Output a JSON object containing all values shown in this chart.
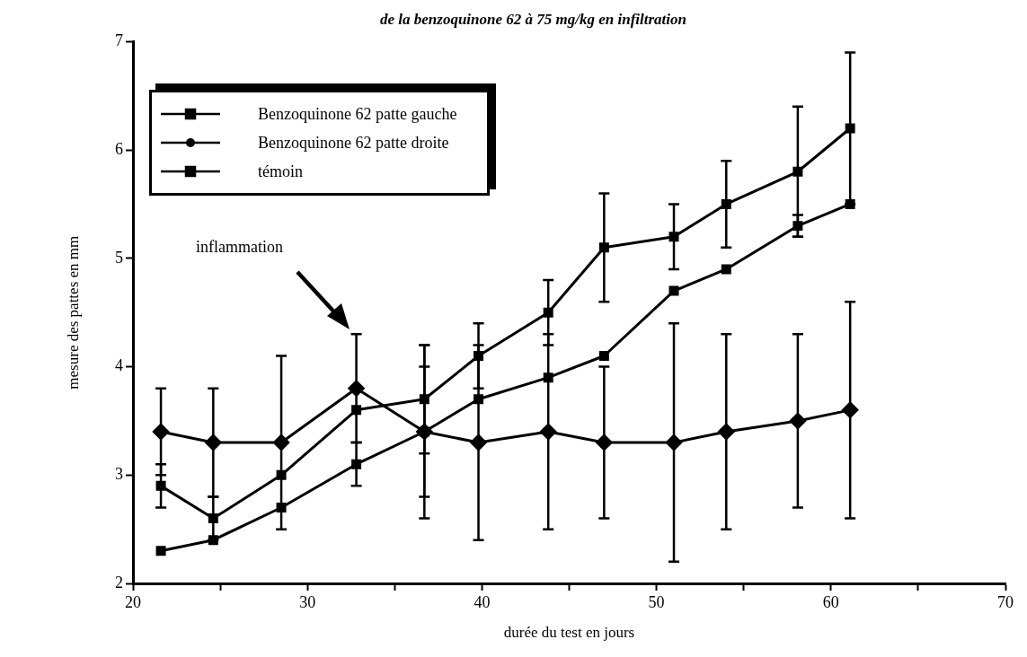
{
  "chart_data": {
    "type": "line",
    "title": "de la benzoquinone 62 à 75 mg/kg en infiltration",
    "xlabel": "durée du test en jours",
    "ylabel": "mesure des pattes en mm",
    "xlim": [
      20,
      70
    ],
    "xticks": [
      20,
      {
        "value": 25,
        "label": null
      },
      30,
      {
        "value": 35,
        "label": null
      },
      40,
      {
        "value": 45,
        "label": null
      },
      50,
      {
        "value": 55,
        "label": null
      },
      60,
      {
        "value": 65,
        "label": null
      },
      70
    ],
    "ylim": [
      2,
      7
    ],
    "yticks": [
      2,
      3,
      4,
      5,
      6,
      7
    ],
    "grid": false,
    "legend": "top left",
    "line_style": "solid",
    "x": [
      21.6,
      24.6,
      28.5,
      32.8,
      36.7,
      39.8,
      43.8,
      47.0,
      51.0,
      54.0,
      58.1,
      61.1
    ],
    "series": [
      {
        "name": "Benzoquinone 62 patte gauche",
        "color": "#000000",
        "marker": "square",
        "values": [
          2.9,
          2.6,
          3.0,
          3.6,
          3.7,
          4.1,
          4.5,
          5.1,
          5.2,
          5.5,
          5.8,
          6.2
        ],
        "errors": [
          0.2,
          0.2,
          null,
          null,
          0.5,
          0.3,
          0.3,
          0.5,
          0.3,
          0.4,
          0.6,
          0.7
        ]
      },
      {
        "name": "Benzoquinone 62 patte droite",
        "color": "#000000",
        "marker": "diamond",
        "values": [
          3.4,
          3.3,
          3.3,
          3.8,
          3.4,
          3.3,
          3.4,
          3.3,
          3.3,
          3.4,
          3.5,
          3.6
        ],
        "errors": [
          0.4,
          0.5,
          0.8,
          0.5,
          0.8,
          0.9,
          0.9,
          0.7,
          1.1,
          0.9,
          0.8,
          1.0
        ]
      },
      {
        "name": "témoin",
        "color": "#000000",
        "marker": "square",
        "values": [
          2.3,
          2.4,
          2.7,
          3.1,
          3.4,
          3.7,
          3.9,
          4.1,
          4.7,
          4.9,
          5.3,
          5.5
        ],
        "errors": [
          null,
          null,
          null,
          0.2,
          0.6,
          null,
          null,
          null,
          null,
          null,
          0.1,
          null
        ]
      }
    ],
    "annotations": [
      "inflammation"
    ]
  }
}
